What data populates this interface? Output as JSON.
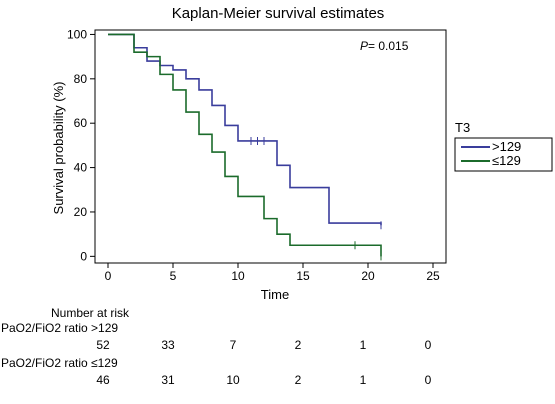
{
  "chart_data": {
    "type": "line",
    "title": "Kaplan-Meier survival estimates",
    "annotation": {
      "p_label": "P",
      "p_value": "= 0.015"
    },
    "xlabel": "Time",
    "ylabel": "Survival probability (%)",
    "xlim": [
      -1,
      26
    ],
    "ylim": [
      -3,
      102
    ],
    "xticks": [
      0,
      5,
      10,
      15,
      20,
      25
    ],
    "yticks": [
      0,
      20,
      40,
      60,
      80,
      100
    ],
    "legend": {
      "title": "T3",
      "placement": "right"
    },
    "series": [
      {
        "name": ">129",
        "color": "#3a3d9c",
        "x": [
          0,
          2,
          3,
          4,
          5,
          6,
          7,
          8,
          9,
          10,
          13,
          14,
          17,
          21
        ],
        "y": [
          100,
          94,
          88,
          86,
          84,
          80,
          75,
          68,
          59,
          52,
          41,
          31,
          15,
          14
        ],
        "censor_x": [
          11,
          11.5,
          12
        ],
        "censor_y": [
          52,
          52,
          52
        ]
      },
      {
        "name": "≤129",
        "color": "#1b6b2b",
        "x": [
          0,
          2,
          3,
          4,
          5,
          6,
          7,
          8,
          9,
          10,
          12,
          13,
          14,
          21
        ],
        "y": [
          100,
          92,
          90,
          82,
          75,
          65,
          55,
          47,
          36,
          27,
          17,
          10,
          5,
          0
        ],
        "censor_x": [
          19
        ],
        "censor_y": [
          5
        ]
      }
    ]
  },
  "risk_table": {
    "header": "Number at risk",
    "groups": [
      {
        "label": "PaO2/FiO2 ratio >129",
        "counts": [
          "52",
          "33",
          "7",
          "2",
          "1",
          "0"
        ]
      },
      {
        "label": "PaO2/FiO2 ratio ≤129",
        "counts": [
          "46",
          "31",
          "10",
          "2",
          "1",
          "0"
        ]
      }
    ]
  }
}
